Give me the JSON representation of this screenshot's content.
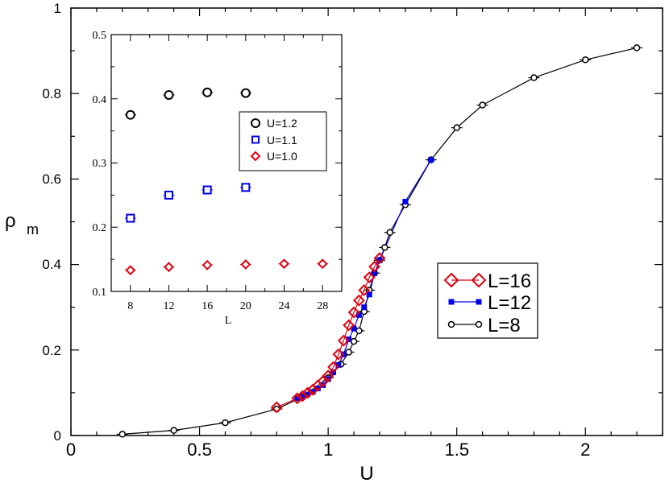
{
  "chart_data": [
    {
      "type": "line",
      "xlabel": "U",
      "ylabel": "ρ",
      "ylabel_sub": "m",
      "xlim": [
        0,
        2.3
      ],
      "ylim": [
        0,
        1
      ],
      "x_ticks": [
        "0",
        "0.5",
        "1",
        "1.5",
        "2"
      ],
      "x_tick_values": [
        0,
        0.5,
        1,
        1.5,
        2
      ],
      "y_ticks": [
        "0",
        "0.2",
        "0.4",
        "0.6",
        "0.8",
        "1"
      ],
      "y_tick_values": [
        0,
        0.2,
        0.4,
        0.6,
        0.8,
        1
      ],
      "legend_position": "right",
      "series": [
        {
          "name": "L=16",
          "marker": "diamond",
          "color": "#e0000f",
          "x": [
            0.8,
            0.88,
            0.9,
            0.92,
            0.94,
            0.96,
            0.98,
            1.0,
            1.02,
            1.04,
            1.06,
            1.08,
            1.1,
            1.12,
            1.14,
            1.16,
            1.18,
            1.2
          ],
          "y": [
            0.066,
            0.087,
            0.092,
            0.1,
            0.107,
            0.117,
            0.127,
            0.14,
            0.16,
            0.19,
            0.222,
            0.258,
            0.288,
            0.316,
            0.34,
            0.37,
            0.395,
            0.415
          ]
        },
        {
          "name": "L=12",
          "marker": "filled-square",
          "color": "#0000e6",
          "x": [
            0.88,
            0.9,
            0.92,
            0.94,
            0.96,
            0.98,
            1.0,
            1.02,
            1.04,
            1.06,
            1.08,
            1.1,
            1.12,
            1.14,
            1.16,
            1.18,
            1.2,
            1.3,
            1.4
          ],
          "y": [
            0.087,
            0.09,
            0.096,
            0.102,
            0.11,
            0.118,
            0.132,
            0.148,
            0.165,
            0.19,
            0.225,
            0.25,
            0.282,
            0.3,
            0.33,
            0.38,
            0.41,
            0.547,
            0.645
          ]
        },
        {
          "name": "L=8",
          "marker": "open-circle",
          "color": "#000000",
          "x": [
            0.2,
            0.4,
            0.6,
            0.8,
            0.9,
            1.0,
            1.05,
            1.08,
            1.1,
            1.12,
            1.14,
            1.16,
            1.18,
            1.2,
            1.22,
            1.24,
            1.3,
            1.4,
            1.5,
            1.6,
            1.8,
            2.0,
            2.2
          ],
          "y": [
            0.003,
            0.012,
            0.03,
            0.062,
            0.09,
            0.135,
            0.167,
            0.195,
            0.22,
            0.245,
            0.29,
            0.34,
            0.38,
            0.41,
            0.44,
            0.475,
            0.54,
            0.645,
            0.72,
            0.773,
            0.837,
            0.879,
            0.907
          ]
        }
      ]
    },
    {
      "type": "scatter",
      "xlabel": "L",
      "ylabel": "",
      "xlim": [
        6,
        30
      ],
      "ylim": [
        0.1,
        0.5
      ],
      "x_ticks": [
        "8",
        "12",
        "16",
        "20",
        "24",
        "28"
      ],
      "x_tick_values": [
        8,
        12,
        16,
        20,
        24,
        28
      ],
      "y_ticks": [
        "0.1",
        "0.2",
        "0.3",
        "0.4",
        "0.5"
      ],
      "y_tick_values": [
        0.1,
        0.2,
        0.3,
        0.4,
        0.5
      ],
      "legend_position": "top-right",
      "series": [
        {
          "name": "U=1.2",
          "marker": "open-circle",
          "color": "#000000",
          "x": [
            8,
            12,
            16,
            20
          ],
          "y": [
            0.375,
            0.406,
            0.41,
            0.409
          ]
        },
        {
          "name": "U=1.1",
          "marker": "open-square",
          "color": "#0000e6",
          "x": [
            8,
            12,
            16,
            20
          ],
          "y": [
            0.214,
            0.25,
            0.258,
            0.262
          ]
        },
        {
          "name": "U=1.0",
          "marker": "open-diamond",
          "color": "#e0000f",
          "x": [
            8,
            12,
            16,
            20,
            24,
            28
          ],
          "y": [
            0.133,
            0.138,
            0.141,
            0.142,
            0.143,
            0.143
          ]
        }
      ]
    }
  ]
}
